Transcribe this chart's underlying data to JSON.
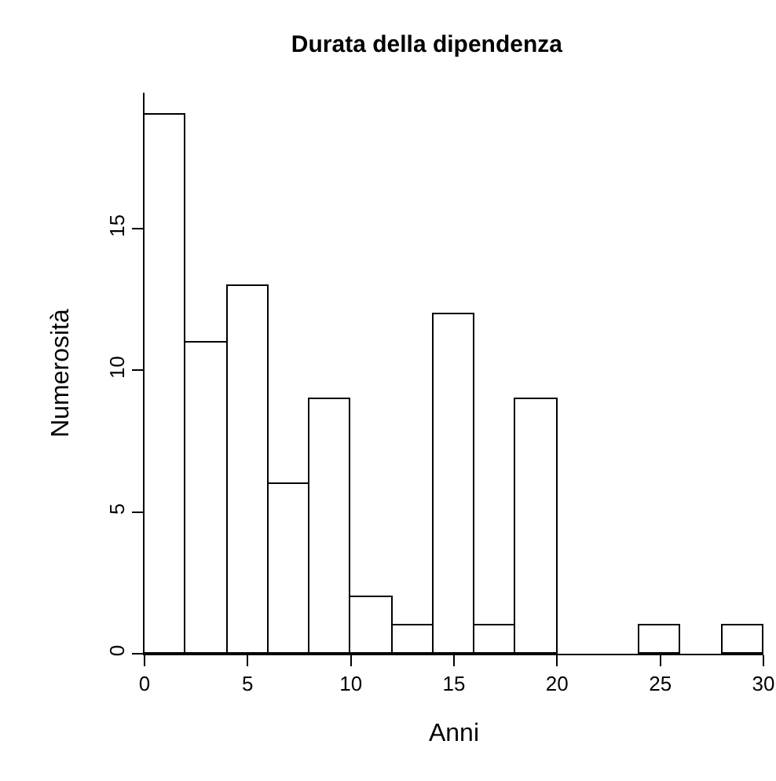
{
  "chart_data": {
    "type": "histogram",
    "title": "Durata della dipendenza",
    "xlabel": "Anni",
    "ylabel": "Numerosità",
    "bins": [
      0,
      2,
      4,
      6,
      8,
      10,
      12,
      14,
      16,
      18,
      20,
      22,
      24,
      26,
      28,
      30
    ],
    "values": [
      19,
      11,
      13,
      6,
      9,
      2,
      1,
      12,
      1,
      9,
      0,
      0,
      1,
      0,
      1
    ],
    "color": "#ffffff",
    "xlim": [
      0,
      30
    ],
    "xticks": [
      0,
      5,
      10,
      15,
      20,
      25,
      30
    ],
    "ylim": [
      0,
      19.8
    ],
    "yticks": [
      0,
      5,
      10,
      15
    ],
    "grid": false,
    "legend": false
  }
}
